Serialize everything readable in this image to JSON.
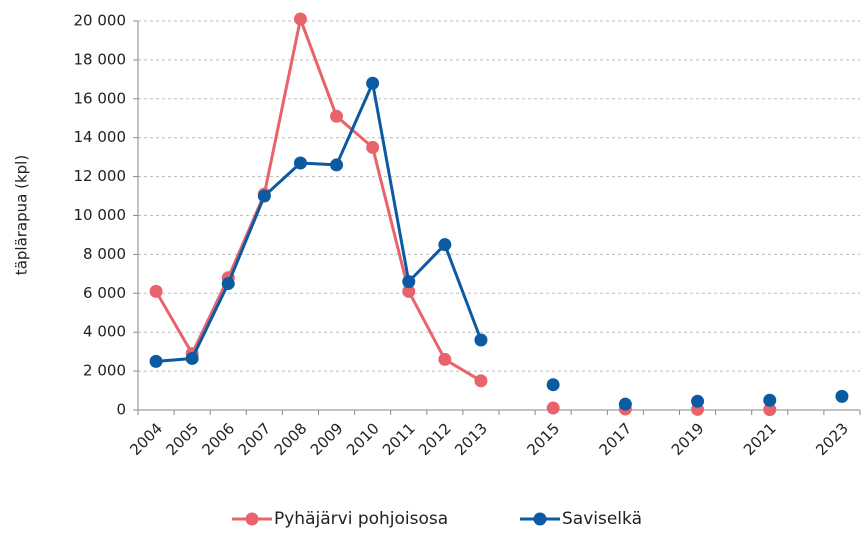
{
  "chart_data": {
    "type": "line",
    "y_label": "täplärapua (kpl)",
    "categories": [
      "2004",
      "2005",
      "2006",
      "2007",
      "2008",
      "2009",
      "2010",
      "2011",
      "2012",
      "2013",
      null,
      "2015",
      null,
      "2017",
      null,
      "2019",
      null,
      "2021",
      null,
      "2023"
    ],
    "series": [
      {
        "name": "Pyhäjärvi pohjoisosa",
        "color": "#e8636c",
        "values": [
          6100,
          2900,
          6800,
          11100,
          20100,
          15100,
          13500,
          6100,
          2600,
          1500,
          null,
          100,
          null,
          50,
          null,
          30,
          null,
          20,
          null,
          null
        ]
      },
      {
        "name": "Saviselkä",
        "color": "#0b5aa2",
        "values": [
          2500,
          2650,
          6500,
          11000,
          12700,
          12600,
          16800,
          6600,
          8500,
          3600,
          null,
          1300,
          null,
          300,
          null,
          450,
          null,
          500,
          null,
          700
        ]
      }
    ],
    "ylim": [
      0,
      20000
    ],
    "yticks": [
      0,
      {
        "value": 2000,
        "label": "2 000"
      },
      {
        "value": 4000,
        "label": "4 000"
      },
      {
        "value": 6000,
        "label": "6 000"
      },
      {
        "value": 8000,
        "label": "8 000"
      },
      {
        "value": 10000,
        "label": "10 000"
      },
      {
        "value": 12000,
        "label": "12 000"
      },
      {
        "value": 14000,
        "label": "14 000"
      },
      {
        "value": 16000,
        "label": "16 000"
      },
      {
        "value": 18000,
        "label": "18 000"
      },
      {
        "value": 20000,
        "label": "20 000"
      }
    ],
    "grid": true,
    "legend": "bottom"
  }
}
